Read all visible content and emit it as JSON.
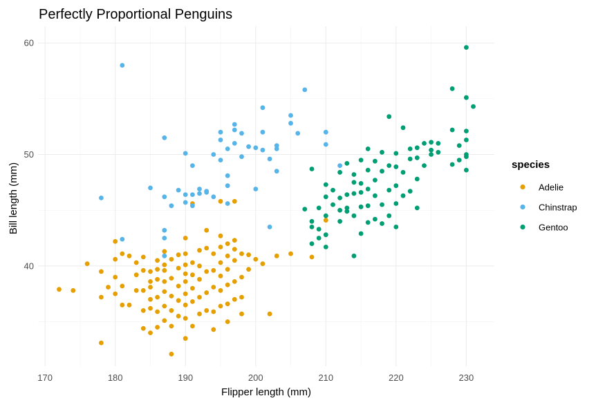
{
  "chart_data": {
    "type": "scatter",
    "title": "Perfectly Proportional Penguins",
    "xlabel": "Flipper length (mm)",
    "ylabel": "Bill length (mm)",
    "xlim": [
      170,
      230
    ],
    "ylim": [
      32,
      60
    ],
    "x_ticks": [
      170,
      180,
      190,
      200,
      210,
      220,
      230
    ],
    "y_ticks": [
      40,
      50,
      60
    ],
    "grid": true,
    "legend": {
      "title": "species",
      "position": "right"
    },
    "series": [
      {
        "name": "Adelie",
        "color": "#E69F00",
        "points": [
          [
            172,
            37.9
          ],
          [
            174,
            37.8
          ],
          [
            176,
            40.2
          ],
          [
            178,
            33.1
          ],
          [
            178,
            37.2
          ],
          [
            178,
            39.5
          ],
          [
            179,
            38.1
          ],
          [
            180,
            37.5
          ],
          [
            180,
            39.0
          ],
          [
            180,
            40.6
          ],
          [
            180,
            42.2
          ],
          [
            181,
            36.5
          ],
          [
            181,
            38.2
          ],
          [
            181,
            41.1
          ],
          [
            182,
            36.5
          ],
          [
            182,
            40.9
          ],
          [
            183,
            37.8
          ],
          [
            183,
            39.2
          ],
          [
            183,
            40.3
          ],
          [
            184,
            34.4
          ],
          [
            184,
            36.0
          ],
          [
            184,
            37.8
          ],
          [
            184,
            39.6
          ],
          [
            184,
            40.8
          ],
          [
            185,
            34.0
          ],
          [
            185,
            36.2
          ],
          [
            185,
            37.0
          ],
          [
            185,
            38.1
          ],
          [
            185,
            38.6
          ],
          [
            185,
            39.5
          ],
          [
            186,
            34.5
          ],
          [
            186,
            35.9
          ],
          [
            186,
            37.2
          ],
          [
            186,
            38.8
          ],
          [
            186,
            39.7
          ],
          [
            186,
            40.5
          ],
          [
            187,
            35.1
          ],
          [
            187,
            36.4
          ],
          [
            187,
            37.7
          ],
          [
            187,
            38.6
          ],
          [
            187,
            39.6
          ],
          [
            187,
            40.1
          ],
          [
            187,
            41.3
          ],
          [
            188,
            32.1
          ],
          [
            188,
            34.6
          ],
          [
            188,
            36.0
          ],
          [
            188,
            37.3
          ],
          [
            188,
            38.9
          ],
          [
            188,
            40.6
          ],
          [
            189,
            35.5
          ],
          [
            189,
            36.9
          ],
          [
            189,
            38.2
          ],
          [
            189,
            39.8
          ],
          [
            189,
            41.0
          ],
          [
            190,
            33.5
          ],
          [
            190,
            35.3
          ],
          [
            190,
            36.5
          ],
          [
            190,
            37.5
          ],
          [
            190,
            38.6
          ],
          [
            190,
            39.3
          ],
          [
            190,
            40.1
          ],
          [
            190,
            41.1
          ],
          [
            190,
            42.5
          ],
          [
            191,
            34.6
          ],
          [
            191,
            36.8
          ],
          [
            191,
            38.0
          ],
          [
            191,
            39.2
          ],
          [
            191,
            40.3
          ],
          [
            191,
            45.6
          ],
          [
            192,
            35.7
          ],
          [
            192,
            37.2
          ],
          [
            192,
            38.8
          ],
          [
            192,
            40.0
          ],
          [
            192,
            41.4
          ],
          [
            193,
            36.0
          ],
          [
            193,
            37.6
          ],
          [
            193,
            39.5
          ],
          [
            193,
            41.6
          ],
          [
            193,
            43.2
          ],
          [
            194,
            34.3
          ],
          [
            194,
            35.9
          ],
          [
            194,
            38.1
          ],
          [
            194,
            39.6
          ],
          [
            194,
            41.1
          ],
          [
            195,
            36.4
          ],
          [
            195,
            37.8
          ],
          [
            195,
            39.1
          ],
          [
            195,
            40.3
          ],
          [
            195,
            41.7
          ],
          [
            195,
            42.7
          ],
          [
            195,
            45.8
          ],
          [
            196,
            35.0
          ],
          [
            196,
            36.6
          ],
          [
            196,
            38.3
          ],
          [
            196,
            39.7
          ],
          [
            196,
            40.9
          ],
          [
            196,
            42.0
          ],
          [
            197,
            37.0
          ],
          [
            197,
            38.6
          ],
          [
            197,
            40.5
          ],
          [
            197,
            41.5
          ],
          [
            197,
            42.3
          ],
          [
            197,
            45.8
          ],
          [
            198,
            35.7
          ],
          [
            198,
            37.2
          ],
          [
            198,
            39.0
          ],
          [
            198,
            41.1
          ],
          [
            199,
            39.7
          ],
          [
            199,
            41.0
          ],
          [
            200,
            40.6
          ],
          [
            201,
            40.2
          ],
          [
            202,
            35.7
          ],
          [
            203,
            40.9
          ],
          [
            205,
            41.1
          ],
          [
            208,
            40.8
          ],
          [
            210,
            44.1
          ]
        ]
      },
      {
        "name": "Chinstrap",
        "color": "#56B4E9",
        "points": [
          [
            178,
            46.1
          ],
          [
            181,
            58.0
          ],
          [
            181,
            42.4
          ],
          [
            185,
            47.0
          ],
          [
            187,
            51.5
          ],
          [
            187,
            46.2
          ],
          [
            187,
            43.2
          ],
          [
            187,
            42.5
          ],
          [
            187,
            40.9
          ],
          [
            188,
            45.4
          ],
          [
            189,
            46.8
          ],
          [
            190,
            46.4
          ],
          [
            190,
            50.1
          ],
          [
            190,
            45.7
          ],
          [
            191,
            46.4
          ],
          [
            191,
            45.4
          ],
          [
            191,
            49.0
          ],
          [
            192,
            46.9
          ],
          [
            192,
            46.5
          ],
          [
            193,
            46.6
          ],
          [
            193,
            46.7
          ],
          [
            194,
            46.2
          ],
          [
            194,
            50.0
          ],
          [
            195,
            51.3
          ],
          [
            195,
            52.0
          ],
          [
            195,
            49.5
          ],
          [
            196,
            50.5
          ],
          [
            196,
            45.6
          ],
          [
            196,
            47.2
          ],
          [
            196,
            48.1
          ],
          [
            197,
            51.0
          ],
          [
            197,
            52.7
          ],
          [
            197,
            52.2
          ],
          [
            198,
            51.9
          ],
          [
            198,
            49.8
          ],
          [
            199,
            50.7
          ],
          [
            200,
            46.9
          ],
          [
            200,
            50.6
          ],
          [
            201,
            50.4
          ],
          [
            201,
            52.0
          ],
          [
            201,
            54.2
          ],
          [
            202,
            43.5
          ],
          [
            202,
            49.6
          ],
          [
            203,
            50.8
          ],
          [
            203,
            50.5
          ],
          [
            203,
            48.5
          ],
          [
            205,
            53.5
          ],
          [
            205,
            52.8
          ],
          [
            206,
            51.9
          ],
          [
            207,
            55.8
          ],
          [
            210,
            52.0
          ],
          [
            210,
            50.9
          ],
          [
            212,
            49.0
          ]
        ]
      },
      {
        "name": "Gentoo",
        "color": "#009E73",
        "points": [
          [
            207,
            45.1
          ],
          [
            208,
            42.0
          ],
          [
            208,
            43.5
          ],
          [
            208,
            44.0
          ],
          [
            208,
            48.7
          ],
          [
            209,
            42.5
          ],
          [
            209,
            43.3
          ],
          [
            209,
            45.2
          ],
          [
            210,
            47.3
          ],
          [
            210,
            44.5
          ],
          [
            210,
            41.7
          ],
          [
            210,
            46.2
          ],
          [
            210,
            42.8
          ],
          [
            211,
            45.5
          ],
          [
            211,
            46.8
          ],
          [
            212,
            45.0
          ],
          [
            212,
            46.1
          ],
          [
            212,
            44.0
          ],
          [
            212,
            48.4
          ],
          [
            213,
            44.9
          ],
          [
            213,
            46.4
          ],
          [
            213,
            49.2
          ],
          [
            213,
            45.2
          ],
          [
            214,
            40.9
          ],
          [
            214,
            44.5
          ],
          [
            214,
            46.5
          ],
          [
            214,
            47.5
          ],
          [
            214,
            48.2
          ],
          [
            215,
            42.9
          ],
          [
            215,
            45.3
          ],
          [
            215,
            46.6
          ],
          [
            215,
            47.4
          ],
          [
            215,
            49.5
          ],
          [
            216,
            43.9
          ],
          [
            216,
            45.4
          ],
          [
            216,
            46.9
          ],
          [
            216,
            48.6
          ],
          [
            216,
            50.5
          ],
          [
            217,
            44.2
          ],
          [
            217,
            46.3
          ],
          [
            217,
            47.7
          ],
          [
            217,
            49.4
          ],
          [
            218,
            43.8
          ],
          [
            218,
            45.5
          ],
          [
            218,
            48.5
          ],
          [
            218,
            50.2
          ],
          [
            219,
            44.5
          ],
          [
            219,
            46.8
          ],
          [
            219,
            49.0
          ],
          [
            219,
            53.4
          ],
          [
            220,
            43.5
          ],
          [
            220,
            45.6
          ],
          [
            220,
            47.2
          ],
          [
            220,
            48.9
          ],
          [
            220,
            50.1
          ],
          [
            221,
            46.3
          ],
          [
            221,
            48.4
          ],
          [
            221,
            52.4
          ],
          [
            222,
            46.7
          ],
          [
            222,
            49.6
          ],
          [
            222,
            50.5
          ],
          [
            223,
            45.2
          ],
          [
            223,
            47.8
          ],
          [
            223,
            49.7
          ],
          [
            223,
            50.6
          ],
          [
            224,
            49.0
          ],
          [
            224,
            51.0
          ],
          [
            225,
            50.0
          ],
          [
            225,
            51.1
          ],
          [
            225,
            50.4
          ],
          [
            226,
            50.2
          ],
          [
            226,
            51.0
          ],
          [
            228,
            49.1
          ],
          [
            228,
            52.2
          ],
          [
            228,
            55.9
          ],
          [
            229,
            49.5
          ],
          [
            229,
            50.8
          ],
          [
            230,
            48.6
          ],
          [
            230,
            50.0
          ],
          [
            230,
            51.3
          ],
          [
            230,
            52.1
          ],
          [
            230,
            55.1
          ],
          [
            230,
            59.6
          ],
          [
            230,
            49.8
          ],
          [
            231,
            54.3
          ]
        ]
      }
    ]
  }
}
